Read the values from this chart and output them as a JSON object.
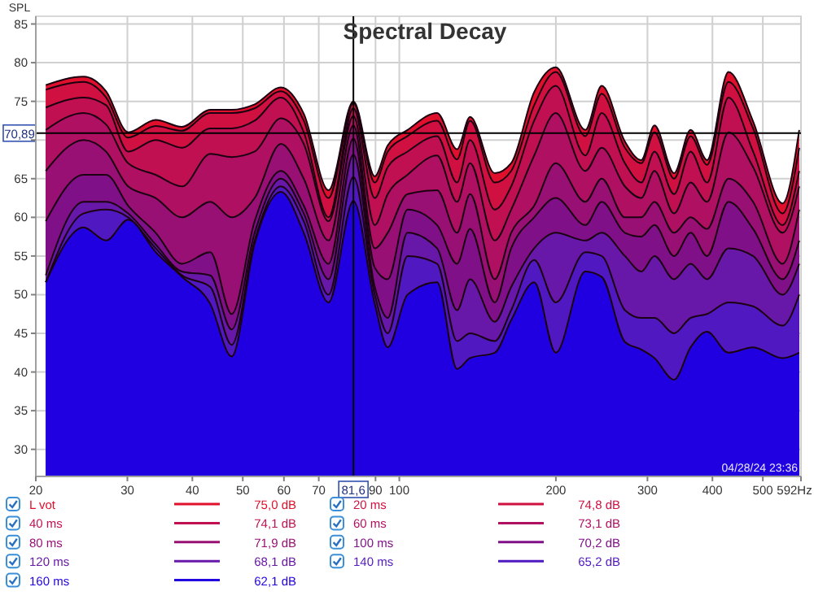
{
  "chart_data": {
    "type": "area",
    "title": "Spectral Decay",
    "ylabel": "SPL",
    "log": "x",
    "grid": true,
    "legend": "bottom",
    "line_style": "solid",
    "x": [
      20.9,
      24.7,
      27.3,
      30.1,
      34.0,
      38.2,
      43.3,
      47.6,
      52.7,
      59.2,
      65.5,
      73.1,
      81.6,
      89.7,
      95.0,
      103.7,
      118.2,
      129.1,
      136.8,
      152.6,
      164.1,
      181.7,
      199.9,
      227.9,
      245.0,
      271.5,
      291.9,
      309.5,
      337.5,
      363.2,
      390.6,
      429.5,
      478.9,
      545.7,
      587.5
    ],
    "xlim": [
      20,
      592
    ],
    "xticks": [
      20,
      30,
      40,
      50,
      60,
      70,
      90,
      100,
      200,
      300,
      400,
      500,
      {
        "value": 592,
        "label": "592Hz"
      }
    ],
    "ylim": [
      26.5,
      86
    ],
    "yticks": [
      30,
      35,
      40,
      45,
      50,
      55,
      60,
      65,
      {
        "value": 70,
        "label": null
      },
      75,
      80,
      85
    ],
    "ref_lines": [
      {
        "axis": "x",
        "value": 81.6,
        "label": "81,6",
        "color": "#000000"
      },
      {
        "axis": "y",
        "value": 70.89,
        "label": "70,89",
        "color": "#000000"
      }
    ],
    "annotations": [
      "75,0 dB",
      "74,8 dB",
      "74,1 dB",
      "73,1 dB",
      "71,9 dB",
      "70,2 dB",
      "68,1 dB",
      "65,2 dB",
      "62,1 dB",
      "04/28/24 23:36"
    ],
    "series": [
      {
        "name": "L vot",
        "color": "#e0102c",
        "values": [
          77.1,
          78.2,
          76.3,
          71,
          72.6,
          71.7,
          73.9,
          73.9,
          74.6,
          76.8,
          73.4,
          63.5,
          75.0,
          65.3,
          69.3,
          71.3,
          73.5,
          68.8,
          73,
          65.7,
          67,
          76.2,
          79.4,
          71.3,
          77,
          69.8,
          67.4,
          71.9,
          65.7,
          71.3,
          67.4,
          78.8,
          72.4,
          61.8,
          71.3
        ]
      },
      {
        "name": "20 ms",
        "color": "#d01040",
        "values": [
          76.5,
          77.5,
          75.5,
          70.3,
          71.8,
          71.2,
          73.5,
          73.5,
          74.1,
          76.3,
          72.5,
          62.5,
          74.8,
          64.5,
          68.5,
          70.5,
          72.5,
          67.5,
          72.5,
          64.5,
          66,
          74.5,
          78.8,
          70.5,
          76,
          69,
          67,
          71,
          65,
          70.5,
          66.8,
          77.5,
          71.5,
          60.5,
          69
        ]
      },
      {
        "name": "40 ms",
        "color": "#c01052",
        "values": [
          74.2,
          75.5,
          74.5,
          68.5,
          70,
          69,
          71.5,
          71.5,
          72.5,
          75.5,
          71,
          60,
          74.1,
          62.5,
          66.5,
          68.5,
          70.5,
          64.5,
          70,
          61,
          64,
          72.5,
          77,
          68,
          73.5,
          67,
          64.5,
          68.5,
          63,
          68.5,
          64.5,
          75.5,
          68.5,
          59,
          66
        ]
      },
      {
        "name": "60 ms",
        "color": "#b01062",
        "values": [
          71.3,
          73.5,
          72,
          67,
          65.5,
          64,
          68.2,
          67.8,
          68.5,
          72.8,
          69.5,
          59.5,
          73.1,
          59,
          63,
          65.5,
          68,
          62,
          67,
          57,
          61,
          68,
          73.5,
          66,
          69,
          64,
          62.5,
          66,
          60.5,
          64.5,
          62,
          71,
          66.5,
          58,
          64
        ]
      },
      {
        "name": "80 ms",
        "color": "#981074",
        "values": [
          66,
          70,
          68.5,
          64,
          62.5,
          60,
          62,
          60,
          62.5,
          69.5,
          65,
          57,
          71.9,
          56,
          58,
          63,
          63.5,
          58,
          63,
          52,
          58,
          61.5,
          67,
          62,
          65,
          60,
          60,
          62,
          58,
          60,
          58.5,
          65,
          62,
          54,
          61
        ]
      },
      {
        "name": "100 ms",
        "color": "#801088",
        "values": [
          59.5,
          65.5,
          65.5,
          61.5,
          58,
          54,
          55.5,
          47.5,
          59.5,
          66,
          61.5,
          54,
          70.2,
          53.5,
          52,
          61,
          59,
          54,
          58.5,
          49,
          56,
          60,
          62.5,
          59,
          62,
          58,
          57.5,
          59,
          55,
          58,
          55,
          62,
          58.5,
          52,
          57
        ]
      },
      {
        "name": "120 ms",
        "color": "#6818a8",
        "values": [
          52.5,
          62,
          62,
          60.5,
          56.5,
          53,
          52.5,
          45.5,
          58,
          65,
          60.5,
          52,
          68.1,
          51,
          47,
          58,
          56,
          48,
          52,
          46.5,
          51,
          56,
          58,
          57,
          58,
          55,
          53,
          55,
          52,
          54,
          52,
          56,
          55,
          50,
          54
        ]
      },
      {
        "name": "140 ms",
        "color": "#5018c0",
        "values": [
          51.6,
          60.5,
          61,
          60,
          56,
          52.5,
          51,
          43.5,
          57,
          64,
          59.5,
          50,
          65.2,
          50,
          45,
          55,
          54,
          44,
          45,
          44,
          48,
          54.5,
          49,
          55.5,
          55,
          48,
          47,
          47,
          45,
          47,
          47.5,
          49,
          48.5,
          46,
          50
        ]
      },
      {
        "name": "160 ms",
        "color": "#2000e0",
        "values": [
          51.6,
          58.7,
          57,
          59.7,
          55.5,
          52.3,
          48.8,
          42,
          56.6,
          63.3,
          58,
          49,
          62.1,
          48.8,
          43.2,
          50,
          51.6,
          40.4,
          41.8,
          42.5,
          46.7,
          51.6,
          42.5,
          53,
          52.3,
          43.9,
          42.9,
          41.8,
          39,
          43.2,
          45.2,
          42.5,
          43.2,
          41.8,
          42.5
        ]
      }
    ]
  }
}
